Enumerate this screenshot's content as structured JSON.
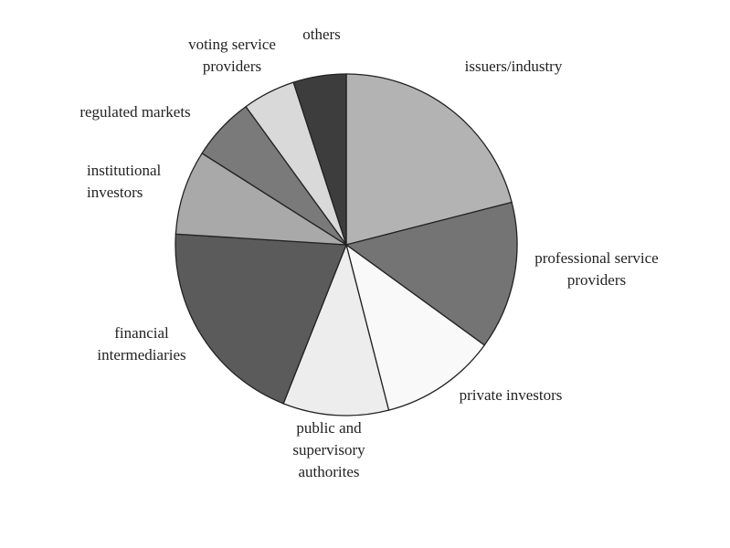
{
  "chart_data": {
    "type": "pie",
    "categories": [
      [
        "issuers/industry"
      ],
      [
        "professional service",
        "providers"
      ],
      [
        "private investors"
      ],
      [
        "public and",
        "supervisory",
        "authorites"
      ],
      [
        "financial",
        "intermediaries"
      ],
      [
        "institutional",
        "investors"
      ],
      [
        "regulated markets"
      ],
      [
        "voting service",
        "providers"
      ],
      [
        "others"
      ]
    ],
    "values": [
      21,
      14,
      11,
      10,
      20,
      8,
      6,
      5,
      5
    ],
    "colors": [
      "#b3b3b3",
      "#747474",
      "#f9f9f9",
      "#ededed",
      "#5b5b5b",
      "#a9a9a9",
      "#7a7a7a",
      "#d9d9d9",
      "#3d3d3d"
    ]
  }
}
